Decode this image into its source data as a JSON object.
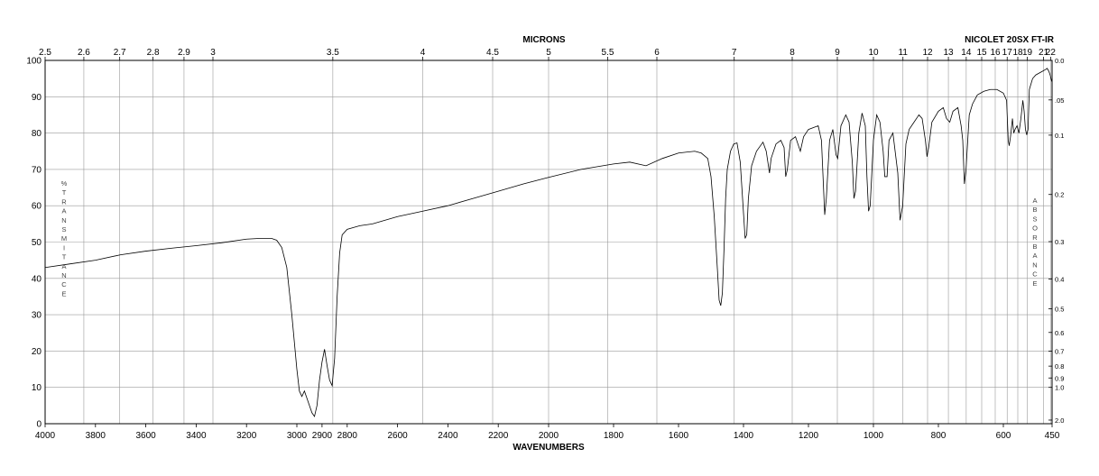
{
  "instrument_label": "NICOLET 20SX FT-IR",
  "chart_data": {
    "type": "line",
    "title": "",
    "top_axis_title": "MICRONS",
    "bottom_axis_title": "WAVENUMBERS",
    "left_axis_title": "%TRANSMITANCE",
    "right_axis_title": "ABSORBANCE",
    "x_range": [
      4000,
      450
    ],
    "x_scale_note": "piecewise linear in wavenumber: 4000-2000 and 2000-450 share the width in two halves",
    "ylim": [
      0,
      100
    ],
    "grid": true,
    "bottom_ticks": [
      4000,
      3800,
      3600,
      3400,
      3200,
      3000,
      2900,
      2800,
      2600,
      2400,
      2200,
      2000,
      1800,
      1600,
      1400,
      1200,
      1000,
      800,
      600,
      450
    ],
    "top_ticks": [
      "2.5",
      "2.6",
      "2.7",
      "2.8",
      "2.9",
      "3",
      "3.5",
      "4",
      "4.5",
      "5",
      "5.5",
      "6",
      "7",
      "8",
      "9",
      "10",
      "11",
      "12",
      "13",
      "14",
      "15",
      "16",
      "17",
      "18",
      "19",
      "21",
      "22"
    ],
    "top_tick_microns": [
      2.5,
      2.6,
      2.7,
      2.8,
      2.9,
      3,
      3.5,
      4,
      4.5,
      5,
      5.5,
      6,
      7,
      8,
      9,
      10,
      11,
      12,
      13,
      14,
      15,
      16,
      17,
      18,
      19,
      21,
      22
    ],
    "left_ticks": [
      "0",
      "10",
      "20",
      "30",
      "40",
      "50",
      "60",
      "70",
      "80",
      "90",
      "100"
    ],
    "right_ticks": [
      "0.0",
      ".05",
      "0.1",
      "0.2",
      "0.3",
      "0.4",
      "0.5",
      "0.6",
      "0.7",
      "0.8",
      "0.9",
      "1.0",
      "2.0"
    ],
    "right_tick_absorbance": [
      0.0,
      0.05,
      0.1,
      0.2,
      0.3,
      0.4,
      0.5,
      0.6,
      0.7,
      0.8,
      0.9,
      1.0,
      2.0
    ],
    "series": [
      {
        "points": [
          [
            4000,
            43
          ],
          [
            3900,
            44
          ],
          [
            3800,
            45
          ],
          [
            3700,
            46.5
          ],
          [
            3600,
            47.5
          ],
          [
            3500,
            48.3
          ],
          [
            3400,
            49
          ],
          [
            3300,
            49.8
          ],
          [
            3200,
            50.8
          ],
          [
            3150,
            51
          ],
          [
            3100,
            51
          ],
          [
            3080,
            50.5
          ],
          [
            3060,
            48.5
          ],
          [
            3040,
            43
          ],
          [
            3020,
            30
          ],
          [
            3000,
            15
          ],
          [
            2990,
            9
          ],
          [
            2980,
            7.5
          ],
          [
            2970,
            9
          ],
          [
            2960,
            7
          ],
          [
            2950,
            5
          ],
          [
            2940,
            3
          ],
          [
            2930,
            2
          ],
          [
            2920,
            5
          ],
          [
            2910,
            12
          ],
          [
            2900,
            17
          ],
          [
            2890,
            20.5
          ],
          [
            2880,
            16
          ],
          [
            2870,
            12
          ],
          [
            2860,
            10.5
          ],
          [
            2850,
            18
          ],
          [
            2840,
            35
          ],
          [
            2830,
            47
          ],
          [
            2820,
            52
          ],
          [
            2800,
            53.5
          ],
          [
            2750,
            54.5
          ],
          [
            2700,
            55
          ],
          [
            2600,
            57
          ],
          [
            2500,
            58.5
          ],
          [
            2400,
            60
          ],
          [
            2300,
            62
          ],
          [
            2200,
            64
          ],
          [
            2100,
            66
          ],
          [
            2000,
            67.8
          ],
          [
            1900,
            70
          ],
          [
            1800,
            71.5
          ],
          [
            1750,
            72
          ],
          [
            1700,
            71
          ],
          [
            1650,
            73
          ],
          [
            1600,
            74.5
          ],
          [
            1550,
            75
          ],
          [
            1530,
            74.5
          ],
          [
            1510,
            73
          ],
          [
            1500,
            68
          ],
          [
            1490,
            57
          ],
          [
            1480,
            42
          ],
          [
            1475,
            34
          ],
          [
            1470,
            32.5
          ],
          [
            1465,
            36
          ],
          [
            1460,
            48
          ],
          [
            1455,
            62
          ],
          [
            1450,
            70
          ],
          [
            1440,
            75
          ],
          [
            1430,
            77
          ],
          [
            1420,
            77.3
          ],
          [
            1410,
            72
          ],
          [
            1400,
            58
          ],
          [
            1395,
            51
          ],
          [
            1390,
            52
          ],
          [
            1385,
            62
          ],
          [
            1375,
            71
          ],
          [
            1360,
            75
          ],
          [
            1340,
            77.5
          ],
          [
            1330,
            75
          ],
          [
            1320,
            69
          ],
          [
            1315,
            73
          ],
          [
            1300,
            77
          ],
          [
            1285,
            78
          ],
          [
            1275,
            76
          ],
          [
            1270,
            68
          ],
          [
            1265,
            70
          ],
          [
            1255,
            78
          ],
          [
            1240,
            79
          ],
          [
            1225,
            75
          ],
          [
            1215,
            79
          ],
          [
            1200,
            81
          ],
          [
            1170,
            82
          ],
          [
            1160,
            78
          ],
          [
            1150,
            57.5
          ],
          [
            1145,
            62
          ],
          [
            1135,
            78
          ],
          [
            1125,
            81
          ],
          [
            1115,
            74
          ],
          [
            1110,
            73
          ],
          [
            1100,
            82
          ],
          [
            1085,
            85
          ],
          [
            1075,
            83
          ],
          [
            1065,
            72
          ],
          [
            1060,
            62
          ],
          [
            1055,
            64
          ],
          [
            1045,
            80
          ],
          [
            1035,
            85.5
          ],
          [
            1025,
            82
          ],
          [
            1020,
            68
          ],
          [
            1015,
            58.5
          ],
          [
            1010,
            60
          ],
          [
            1000,
            78
          ],
          [
            990,
            85
          ],
          [
            980,
            83
          ],
          [
            970,
            75
          ],
          [
            965,
            68
          ],
          [
            958,
            68
          ],
          [
            952,
            78
          ],
          [
            940,
            80
          ],
          [
            925,
            69
          ],
          [
            918,
            56
          ],
          [
            910,
            60
          ],
          [
            900,
            77
          ],
          [
            890,
            81
          ],
          [
            875,
            83
          ],
          [
            860,
            85
          ],
          [
            850,
            84
          ],
          [
            840,
            78
          ],
          [
            835,
            73.5
          ],
          [
            830,
            76
          ],
          [
            820,
            83
          ],
          [
            800,
            86
          ],
          [
            785,
            87
          ],
          [
            775,
            84
          ],
          [
            765,
            83
          ],
          [
            755,
            86
          ],
          [
            740,
            87
          ],
          [
            730,
            82
          ],
          [
            725,
            78
          ],
          [
            720,
            66
          ],
          [
            715,
            70
          ],
          [
            705,
            85
          ],
          [
            695,
            88
          ],
          [
            680,
            90.5
          ],
          [
            660,
            91.5
          ],
          [
            640,
            92
          ],
          [
            620,
            92
          ],
          [
            600,
            91
          ],
          [
            590,
            89
          ],
          [
            585,
            78
          ],
          [
            582,
            76.5
          ],
          [
            578,
            79
          ],
          [
            572,
            84
          ],
          [
            568,
            80
          ],
          [
            564,
            81
          ],
          [
            558,
            82
          ],
          [
            552,
            80
          ],
          [
            546,
            84
          ],
          [
            540,
            89
          ],
          [
            536,
            86
          ],
          [
            532,
            81
          ],
          [
            528,
            79.5
          ],
          [
            524,
            81
          ],
          [
            520,
            92
          ],
          [
            510,
            95
          ],
          [
            500,
            96
          ],
          [
            490,
            96.5
          ],
          [
            480,
            97
          ],
          [
            470,
            97.5
          ],
          [
            465,
            97.8
          ],
          [
            460,
            97
          ],
          [
            456,
            96
          ],
          [
            452,
            94.5
          ],
          [
            450,
            94
          ]
        ]
      }
    ]
  }
}
